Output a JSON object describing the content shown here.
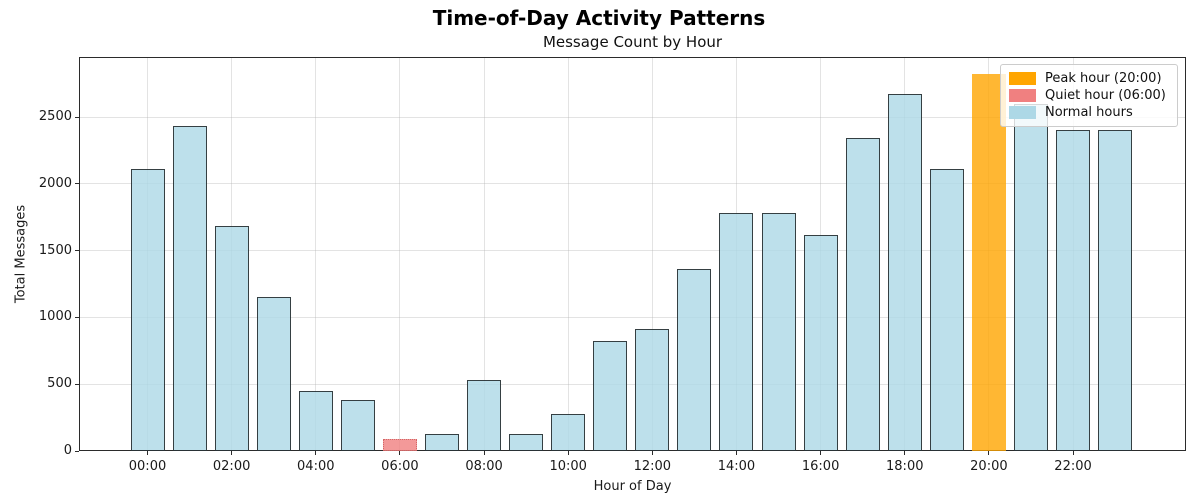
{
  "chart_data": {
    "type": "bar",
    "title": "Time-of-Day Activity Patterns",
    "subtitle": "Message Count by Hour",
    "xlabel": "Hour of Day",
    "ylabel": "Total Messages",
    "categories": [
      "00:00",
      "01:00",
      "02:00",
      "03:00",
      "04:00",
      "05:00",
      "06:00",
      "07:00",
      "08:00",
      "09:00",
      "10:00",
      "11:00",
      "12:00",
      "13:00",
      "14:00",
      "15:00",
      "16:00",
      "17:00",
      "18:00",
      "19:00",
      "20:00",
      "21:00",
      "22:00",
      "23:00"
    ],
    "values": [
      2110,
      2430,
      1685,
      1150,
      450,
      385,
      90,
      125,
      530,
      125,
      280,
      825,
      910,
      1360,
      1780,
      1780,
      1615,
      2345,
      2670,
      2110,
      2820,
      2600,
      2400,
      2400
    ],
    "peak_hour": "20:00",
    "quiet_hour": "06:00",
    "x_tick_labels": [
      "00:00",
      "02:00",
      "04:00",
      "06:00",
      "08:00",
      "10:00",
      "12:00",
      "14:00",
      "16:00",
      "18:00",
      "20:00",
      "22:00"
    ],
    "y_ticks": [
      0,
      500,
      1000,
      1500,
      2000,
      2500
    ],
    "ylim": [
      0,
      2950
    ],
    "grid": true,
    "legend": {
      "position": "upper right",
      "entries": [
        {
          "label": "Peak hour (20:00)",
          "color": "#FFA500",
          "key": "peak"
        },
        {
          "label": "Quiet hour (06:00)",
          "color": "#F08080",
          "key": "quiet"
        },
        {
          "label": "Normal hours",
          "color": "#ADD8E6",
          "key": "normal"
        }
      ]
    },
    "colors": {
      "normal_fill": "#ADD8E6",
      "peak_fill": "#FFA500",
      "quiet_fill": "#F08080",
      "bar_edge": "#2b2b2b",
      "bar_alpha": 0.8
    }
  }
}
